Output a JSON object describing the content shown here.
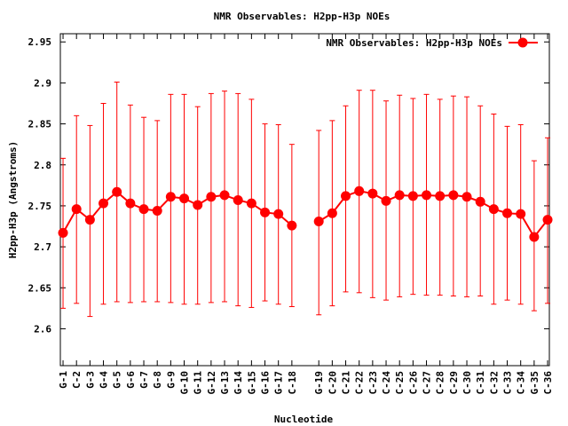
{
  "chart_data": {
    "type": "line",
    "title": "NMR Observables: H2pp-H3p NOEs",
    "xlabel": "Nucleotide",
    "ylabel": "H2pp-H3p (Angstroms)",
    "ylim": [
      2.555,
      2.96
    ],
    "xlim": [
      0.8,
      37.13
    ],
    "yticks": [
      2.6,
      2.65,
      2.7,
      2.75,
      2.8,
      2.85,
      2.9,
      2.95
    ],
    "ytick_labels": [
      "2.6",
      "2.65",
      "2.7",
      "2.75",
      "2.8",
      "2.85",
      "2.9",
      "2.95"
    ],
    "legend": {
      "label": "NMR Observables: H2pp-H3p NOEs",
      "position": "top-right"
    },
    "series_color": "#ff0000",
    "grid": false,
    "categories": [
      "G-1",
      "C-2",
      "G-3",
      "G-4",
      "G-5",
      "G-6",
      "G-7",
      "G-8",
      "G-9",
      "G-10",
      "G-11",
      "G-12",
      "G-13",
      "G-14",
      "G-15",
      "G-16",
      "G-17",
      "C-18",
      "G-19",
      "C-20",
      "C-21",
      "C-22",
      "C-23",
      "C-24",
      "C-25",
      "C-26",
      "C-27",
      "C-28",
      "C-29",
      "C-30",
      "C-31",
      "C-32",
      "C-33",
      "C-34",
      "G-35",
      "C-36"
    ],
    "x": [
      1,
      2,
      3,
      4,
      5,
      6,
      7,
      8,
      9,
      10,
      11,
      12,
      13,
      14,
      15,
      16,
      17,
      18,
      20,
      21,
      22,
      23,
      24,
      25,
      26,
      27,
      28,
      29,
      30,
      31,
      32,
      33,
      34,
      35,
      36,
      37
    ],
    "values": [
      2.717,
      2.746,
      2.733,
      2.753,
      2.767,
      2.753,
      2.746,
      2.744,
      2.761,
      2.759,
      2.751,
      2.761,
      2.763,
      2.757,
      2.753,
      2.742,
      2.74,
      2.726,
      2.731,
      2.741,
      2.762,
      2.768,
      2.765,
      2.756,
      2.763,
      2.762,
      2.763,
      2.762,
      2.763,
      2.761,
      2.755,
      2.746,
      2.741,
      2.74,
      2.712,
      2.733
    ],
    "err_high": [
      2.808,
      2.86,
      2.848,
      2.875,
      2.901,
      2.873,
      2.858,
      2.854,
      2.886,
      2.886,
      2.871,
      2.887,
      2.89,
      2.887,
      2.88,
      2.85,
      2.849,
      2.825,
      2.842,
      2.854,
      2.872,
      2.891,
      2.891,
      2.878,
      2.885,
      2.881,
      2.886,
      2.88,
      2.884,
      2.883,
      2.872,
      2.862,
      2.847,
      2.849,
      2.805,
      2.833
    ],
    "err_low": [
      2.625,
      2.631,
      2.615,
      2.63,
      2.633,
      2.632,
      2.633,
      2.633,
      2.632,
      2.63,
      2.63,
      2.632,
      2.633,
      2.628,
      2.626,
      2.634,
      2.63,
      2.627,
      2.617,
      2.628,
      2.645,
      2.644,
      2.638,
      2.635,
      2.639,
      2.642,
      2.641,
      2.641,
      2.64,
      2.639,
      2.64,
      2.63,
      2.635,
      2.63,
      2.622,
      2.631
    ]
  }
}
